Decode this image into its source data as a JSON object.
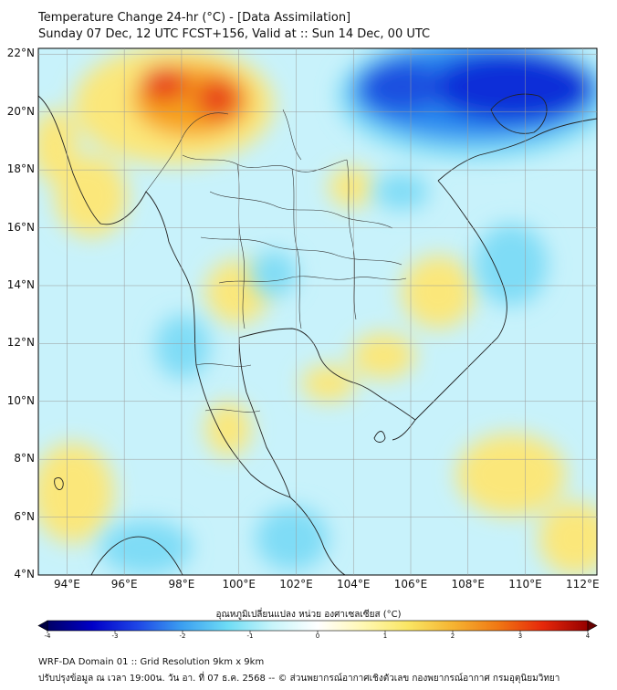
{
  "title_line1": "Temperature Change 24-hr (°C) - [Data Assimilation]",
  "title_line2": "Sunday 07 Dec, 12 UTC FCST+156, Valid at :: Sun 14 Dec, 00 UTC",
  "map": {
    "lat_labels": [
      "22°N",
      "20°N",
      "18°N",
      "16°N",
      "14°N",
      "12°N",
      "10°N",
      "8°N",
      "6°N",
      "4°N"
    ],
    "lon_labels": [
      "94°E",
      "96°E",
      "98°E",
      "100°E",
      "102°E",
      "104°E",
      "106°E",
      "108°E",
      "110°E",
      "112°E"
    ],
    "lat_range": [
      4,
      22.2
    ],
    "lon_range": [
      93,
      112.5
    ],
    "colors": {
      "ocean_base": "#c8f2fb",
      "warm_strong": "#e8421a",
      "warm_mid": "#f7a21a",
      "warm_light": "#fbe77a",
      "cold_strong": "#0b2fd8",
      "cold_mid": "#2a8cf0",
      "cold_light": "#7fdcf6",
      "coast": "#222222"
    }
  },
  "colorbar": {
    "title": "อุณหภูมิเปลี่ยนแปลง หน่วย องศาเซลเซียส (°C)",
    "ticks": [
      "-4",
      "-3",
      "-2",
      "-1",
      "0",
      "1",
      "2",
      "3",
      "4"
    ],
    "min": -4,
    "max": 4,
    "colors": [
      "#000066",
      "#0000c8",
      "#1e46e6",
      "#3ca0f0",
      "#6edcf5",
      "#c8f5fa",
      "#ffffff",
      "#fff8b4",
      "#fae664",
      "#f5b432",
      "#f07814",
      "#e6280a",
      "#960000"
    ]
  },
  "footer_line1": "WRF-DA Domain 01 :: Grid Resolution 9km x 9km",
  "footer_line2": "ปรับปรุงข้อมูล ณ เวลา 19:00น. วัน อา. ที่ 07 ธ.ค. 2568 -- © ส่วนพยากรณ์อากาศเชิงตัวเลข กองพยากรณ์อากาศ กรมอุตุนิยมวิทยา"
}
